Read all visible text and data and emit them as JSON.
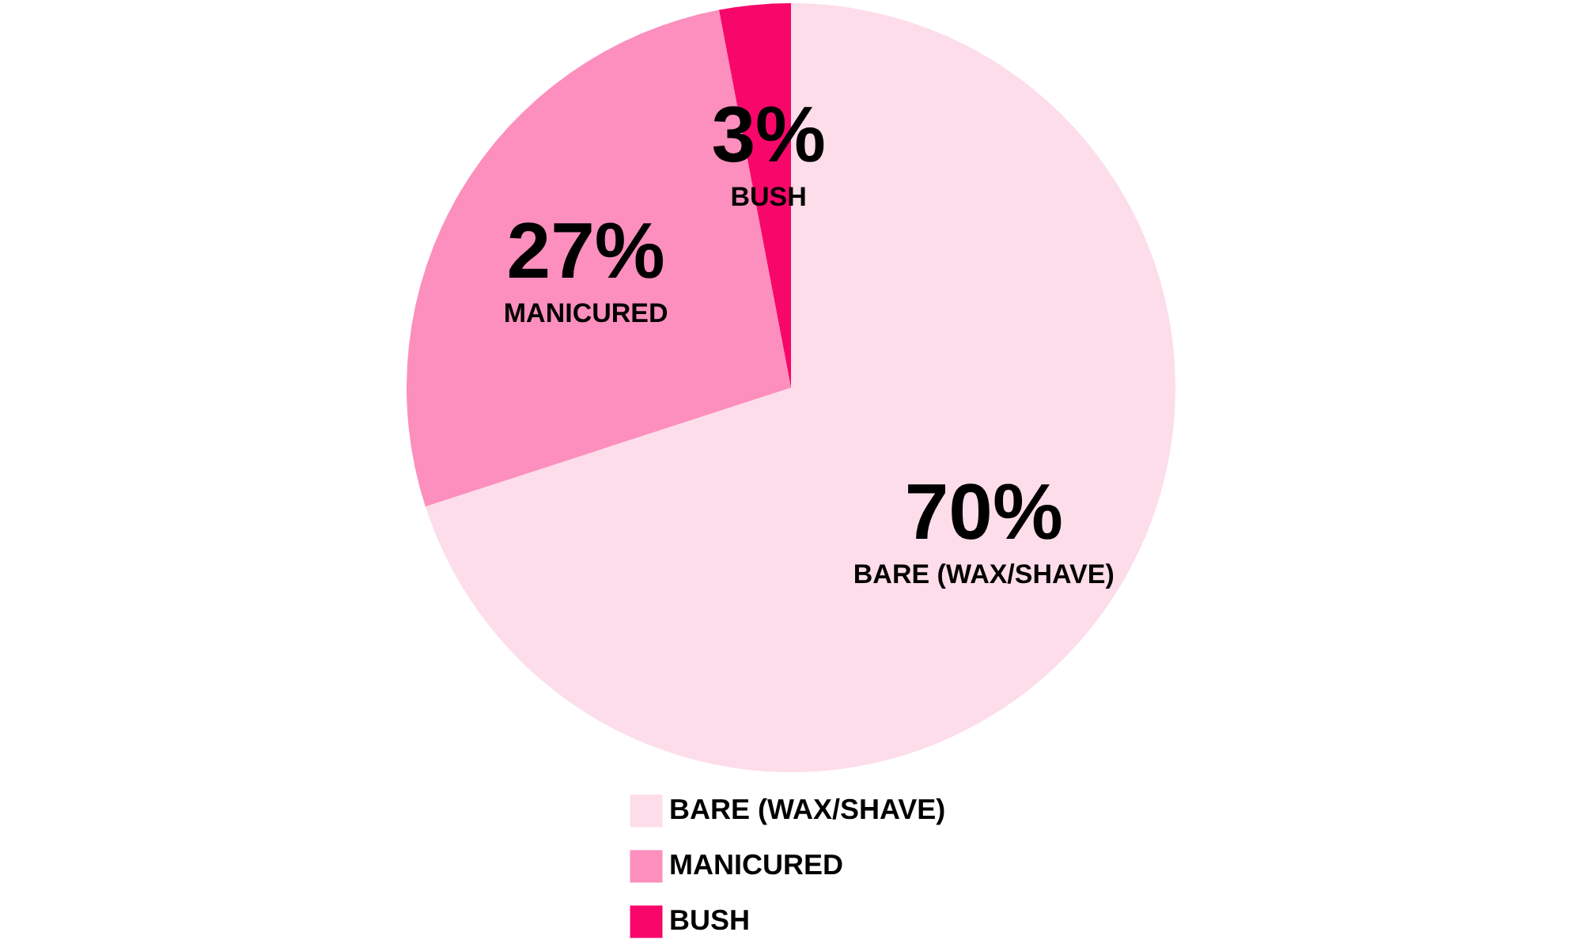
{
  "chart_data": {
    "type": "pie",
    "categories": [
      "BARE (WAX/SHAVE)",
      "MANICURED",
      "BUSH"
    ],
    "values": [
      70,
      27,
      3
    ],
    "colors": [
      "#fddde9",
      "#fc8fbd",
      "#f8076b"
    ],
    "value_labels": [
      "70%",
      "27%",
      "3%"
    ],
    "legend": "bottom"
  }
}
